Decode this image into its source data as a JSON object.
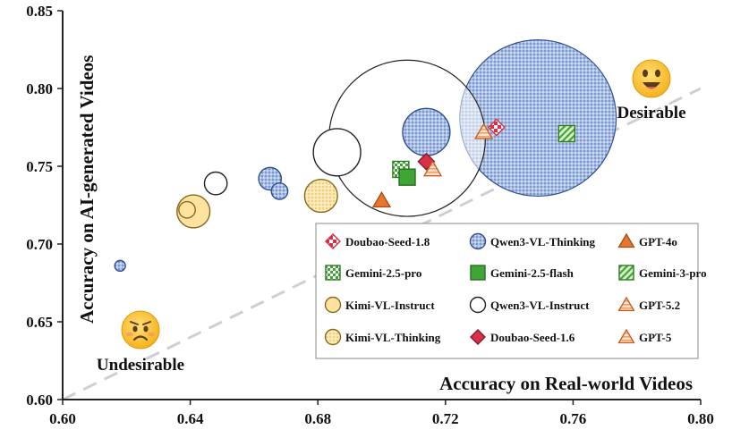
{
  "chart_data": {
    "type": "scatter",
    "title": "",
    "xlabel": "Accuracy on Real-world Videos",
    "ylabel": "Accuracy on AI-generated Videos",
    "xlim": [
      0.6,
      0.8
    ],
    "ylim": [
      0.6,
      0.85
    ],
    "xticks": [
      "0.60",
      "0.64",
      "0.68",
      "0.72",
      "0.76",
      "0.80"
    ],
    "yticks": [
      "0.60",
      "0.65",
      "0.70",
      "0.75",
      "0.80",
      "0.85"
    ],
    "reference_line": "y = x",
    "annotations": [
      {
        "id": "desirable",
        "text": "Desirable",
        "emoji": "smiling-face",
        "x": 0.787,
        "y": 0.807
      },
      {
        "id": "undesirable",
        "text": "Undesirable",
        "emoji": "sad-face",
        "x": 0.624,
        "y": 0.645
      }
    ],
    "colors": {
      "orange": "#e8772e",
      "orange_light": "#f6a571",
      "green": "#3fa535",
      "green_light": "#a8d67e",
      "blue": "#9db4de",
      "blue_dark": "#3f62ad",
      "yellow": "#fde2a0",
      "red": "#d9304a",
      "pink": "#f08a8f"
    },
    "series": [
      {
        "name": "Doubao-Seed-1.8",
        "marker": "diamond",
        "style": "checker-red",
        "points": [
          {
            "x": 0.736,
            "y": 0.775
          }
        ]
      },
      {
        "name": "Qwen3-VL-Thinking",
        "marker": "circle",
        "style": "dots-blue",
        "points": [
          {
            "x": 0.618,
            "y": 0.686,
            "size": 2.6
          },
          {
            "x": 0.665,
            "y": 0.742,
            "size": 5.5
          },
          {
            "x": 0.668,
            "y": 0.734,
            "size": 4
          },
          {
            "x": 0.714,
            "y": 0.772,
            "size": 11.5
          },
          {
            "x": 0.749,
            "y": 0.781,
            "size": 38
          }
        ]
      },
      {
        "name": "GPT-4o",
        "marker": "triangle",
        "style": "solid-orange",
        "points": [
          {
            "x": 0.7,
            "y": 0.728
          }
        ]
      },
      {
        "name": "Gemini-2.5-pro",
        "marker": "square",
        "style": "checker-green",
        "points": [
          {
            "x": 0.706,
            "y": 0.748
          }
        ]
      },
      {
        "name": "Gemini-2.5-flash",
        "marker": "square",
        "style": "solid-green",
        "points": [
          {
            "x": 0.708,
            "y": 0.743
          }
        ]
      },
      {
        "name": "Gemini-3-pro",
        "marker": "square",
        "style": "hatch-green",
        "points": [
          {
            "x": 0.758,
            "y": 0.771
          }
        ]
      },
      {
        "name": "Kimi-VL-Instruct",
        "marker": "circle",
        "style": "solid-yellow",
        "points": [
          {
            "x": 0.639,
            "y": 0.722,
            "size": 4
          },
          {
            "x": 0.641,
            "y": 0.721,
            "size": 8
          }
        ]
      },
      {
        "name": "Qwen3-VL-Instruct",
        "marker": "circle",
        "style": "hollow",
        "points": [
          {
            "x": 0.648,
            "y": 0.739,
            "size": 5.5
          },
          {
            "x": 0.686,
            "y": 0.759,
            "size": 11.5
          },
          {
            "x": 0.708,
            "y": 0.768,
            "size": 38
          }
        ]
      },
      {
        "name": "GPT-5.2",
        "marker": "triangle",
        "style": "lines-orange",
        "points": [
          {
            "x": 0.732,
            "y": 0.772
          }
        ]
      },
      {
        "name": "Kimi-VL-Thinking",
        "marker": "circle",
        "style": "dots-yellow",
        "points": [
          {
            "x": 0.681,
            "y": 0.731,
            "size": 8
          }
        ]
      },
      {
        "name": "Doubao-Seed-1.6",
        "marker": "diamond",
        "style": "solid-red",
        "points": [
          {
            "x": 0.714,
            "y": 0.753
          }
        ]
      },
      {
        "name": "GPT-5",
        "marker": "triangle",
        "style": "lines-orange",
        "points": [
          {
            "x": 0.716,
            "y": 0.748
          }
        ]
      }
    ],
    "legend": {
      "placement": "bottom-right",
      "entries": [
        "Doubao-Seed-1.8",
        "Qwen3-VL-Thinking",
        "GPT-4o",
        "Gemini-2.5-pro",
        "Gemini-2.5-flash",
        "Gemini-3-pro",
        "Kimi-VL-Instruct",
        "Qwen3-VL-Instruct",
        "GPT-5.2",
        "Kimi-VL-Thinking",
        "Doubao-Seed-1.6",
        "GPT-5"
      ]
    }
  }
}
